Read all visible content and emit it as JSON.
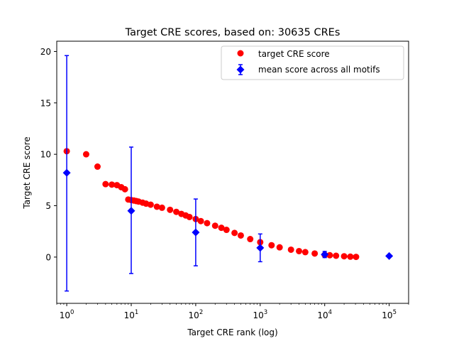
{
  "chart_data": {
    "type": "scatter",
    "title": "Target CRE scores, based on: 30635 CREs",
    "xlabel": "Target CRE rank (log)",
    "ylabel": "Target CRE score",
    "xscale": "log",
    "xlim": [
      0.7,
      200000
    ],
    "ylim": [
      -4.5,
      21
    ],
    "grid": false,
    "legend_position": "upper-right",
    "x_ticks": [
      {
        "value": 1,
        "base": "10",
        "exp": "0"
      },
      {
        "value": 10,
        "base": "10",
        "exp": "1"
      },
      {
        "value": 100,
        "base": "10",
        "exp": "2"
      },
      {
        "value": 1000,
        "base": "10",
        "exp": "3"
      },
      {
        "value": 10000,
        "base": "10",
        "exp": "4"
      },
      {
        "value": 100000,
        "base": "10",
        "exp": "5"
      }
    ],
    "y_ticks": [
      {
        "value": 0,
        "label": "0"
      },
      {
        "value": 5,
        "label": "5"
      },
      {
        "value": 10,
        "label": "10"
      },
      {
        "value": 15,
        "label": "15"
      },
      {
        "value": 20,
        "label": "20"
      }
    ],
    "series": [
      {
        "name": "target CRE score",
        "kind": "scatter",
        "color": "#ff0000",
        "marker": "circle",
        "x": [
          1,
          2,
          3,
          4,
          5,
          6,
          7,
          8,
          9,
          10,
          11,
          12,
          13,
          15,
          17,
          20,
          25,
          30,
          40,
          50,
          60,
          70,
          80,
          100,
          120,
          150,
          200,
          250,
          300,
          400,
          500,
          700,
          1000,
          1500,
          2000,
          3000,
          4000,
          5000,
          7000,
          10000,
          12000,
          15000,
          20000,
          25000,
          30635
        ],
        "y": [
          10.3,
          10.0,
          8.8,
          7.1,
          7.05,
          7.0,
          6.8,
          6.6,
          5.6,
          5.55,
          5.5,
          5.45,
          5.4,
          5.3,
          5.2,
          5.1,
          4.9,
          4.8,
          4.6,
          4.4,
          4.2,
          4.05,
          3.9,
          3.7,
          3.5,
          3.3,
          3.05,
          2.85,
          2.65,
          2.35,
          2.1,
          1.75,
          1.45,
          1.15,
          0.95,
          0.72,
          0.58,
          0.48,
          0.35,
          0.22,
          0.18,
          0.13,
          0.08,
          0.04,
          0.02
        ]
      },
      {
        "name": "mean score across all motifs",
        "kind": "errorbar",
        "color": "#0000ff",
        "marker": "diamond",
        "x": [
          1,
          10,
          100,
          1000,
          10000,
          100000
        ],
        "y": [
          8.2,
          4.5,
          2.4,
          0.9,
          0.25,
          0.1
        ],
        "yerr_low": [
          -3.3,
          -1.6,
          -0.85,
          -0.45,
          -0.05,
          0.1
        ],
        "yerr_high": [
          19.6,
          10.7,
          5.65,
          2.25,
          0.55,
          0.1
        ]
      }
    ]
  }
}
